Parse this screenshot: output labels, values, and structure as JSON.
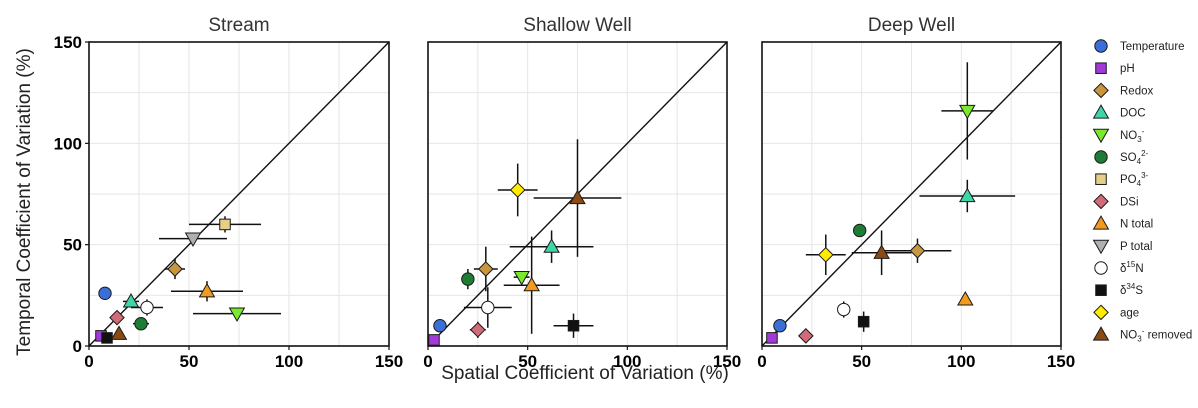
{
  "chart_data": {
    "type": "scatter",
    "xlabel": "Spatial Coefficient of Variation (%)",
    "ylabel": "Temporal Coefficient of Variation (%)",
    "xlim": [
      0,
      150
    ],
    "ylim": [
      0,
      150
    ],
    "xticks": [
      "0",
      "50",
      "100",
      "150"
    ],
    "yticks": [
      "0",
      "50",
      "100",
      "150"
    ],
    "grid": true,
    "reference_line": "1:1",
    "legend_position": "right",
    "variables": [
      {
        "key": "Temperature",
        "marker": "circle",
        "color": "#3a6fd8",
        "label_main": "Temperature",
        "label_sup": ""
      },
      {
        "key": "pH",
        "marker": "square",
        "color": "#a13ad8",
        "label_main": "pH",
        "label_sup": ""
      },
      {
        "key": "Redox",
        "marker": "diamond",
        "color": "#c8963c",
        "label_main": "Redox",
        "label_sup": ""
      },
      {
        "key": "DOC",
        "marker": "triangle-up",
        "color": "#3ed6a8",
        "label_main": "DOC",
        "label_sup": ""
      },
      {
        "key": "NO3",
        "marker": "triangle-down",
        "color": "#7ae82c",
        "label_main": "NO",
        "label_sub": "3",
        "label_sup": "-"
      },
      {
        "key": "SO4",
        "marker": "circle",
        "color": "#1e7d34",
        "label_main": "SO",
        "label_sub": "4",
        "label_sup": "2-"
      },
      {
        "key": "PO4",
        "marker": "square",
        "color": "#e6cf86",
        "label_main": "PO",
        "label_sub": "4",
        "label_sup": "3-"
      },
      {
        "key": "DSi",
        "marker": "diamond",
        "color": "#d16b7a",
        "label_main": "DSi",
        "label_sup": ""
      },
      {
        "key": "Ntotal",
        "marker": "triangle-up",
        "color": "#f39a1e",
        "label_main": "N total",
        "label_sup": ""
      },
      {
        "key": "Ptotal",
        "marker": "triangle-down",
        "color": "#b0b0b0",
        "label_main": "P total",
        "label_sup": ""
      },
      {
        "key": "d15N",
        "marker": "circle",
        "color": "#ffffff",
        "label_main": "δ",
        "label_pre_sup": "15",
        "label_after": "N",
        "label_sup": ""
      },
      {
        "key": "d34S",
        "marker": "square",
        "color": "#111111",
        "label_main": "δ",
        "label_pre_sup": "34",
        "label_after": "S",
        "label_sup": ""
      },
      {
        "key": "age",
        "marker": "diamond",
        "color": "#ffec00",
        "label_main": "age",
        "label_sup": ""
      },
      {
        "key": "NO3removed",
        "marker": "triangle-up",
        "color": "#8b4a12",
        "label_main": "NO",
        "label_sub": "3",
        "label_sup": "-",
        "label_after": " removed"
      }
    ],
    "panels": [
      {
        "title": "Stream",
        "points": [
          {
            "var": "Temperature",
            "x": 8,
            "y": 26
          },
          {
            "var": "pH",
            "x": 6,
            "y": 5
          },
          {
            "var": "Redox",
            "x": 43,
            "y": 38,
            "xerr": 5,
            "yerr": 5
          },
          {
            "var": "DOC",
            "x": 21,
            "y": 22,
            "xerr": 4,
            "yerr": 3
          },
          {
            "var": "NO3",
            "x": 74,
            "y": 16,
            "xerr": 22,
            "yerr": 3
          },
          {
            "var": "SO4",
            "x": 26,
            "y": 11,
            "xerr": 4,
            "yerr": 3
          },
          {
            "var": "PO4",
            "x": 68,
            "y": 60,
            "xerr": 18,
            "yerr": 4
          },
          {
            "var": "DSi",
            "x": 14,
            "y": 14
          },
          {
            "var": "Ntotal",
            "x": 59,
            "y": 27,
            "xerr": 18,
            "yerr": 5
          },
          {
            "var": "Ptotal",
            "x": 52,
            "y": 53,
            "xerr": 17,
            "yerr": 3
          },
          {
            "var": "d15N",
            "x": 29,
            "y": 19,
            "xerr": 8,
            "yerr": 4
          },
          {
            "var": "d34S",
            "x": 9,
            "y": 4
          },
          {
            "var": "NO3removed",
            "x": 15,
            "y": 6
          }
        ]
      },
      {
        "title": "Shallow Well",
        "points": [
          {
            "var": "Temperature",
            "x": 6,
            "y": 10
          },
          {
            "var": "pH",
            "x": 3,
            "y": 3
          },
          {
            "var": "Redox",
            "x": 29,
            "y": 38,
            "xerr": 6,
            "yerr": 11
          },
          {
            "var": "DOC",
            "x": 62,
            "y": 49,
            "xerr": 21,
            "yerr": 8
          },
          {
            "var": "NO3",
            "x": 47,
            "y": 34,
            "xerr": 4,
            "yerr": 3
          },
          {
            "var": "SO4",
            "x": 20,
            "y": 33,
            "xerr": 3,
            "yerr": 5
          },
          {
            "var": "DSi",
            "x": 25,
            "y": 8,
            "xerr": 4,
            "yerr": 4
          },
          {
            "var": "Ntotal",
            "x": 52,
            "y": 30,
            "xerr": 14,
            "yerr": 24
          },
          {
            "var": "d15N",
            "x": 30,
            "y": 19,
            "xerr": 12,
            "yerr": 10
          },
          {
            "var": "d34S",
            "x": 73,
            "y": 10,
            "xerr": 10,
            "yerr": 6
          },
          {
            "var": "age",
            "x": 45,
            "y": 77,
            "xerr": 10,
            "yerr": 13
          },
          {
            "var": "NO3removed",
            "x": 75,
            "y": 73,
            "xerr": 22,
            "yerr": 29
          }
        ]
      },
      {
        "title": "Deep Well",
        "points": [
          {
            "var": "Temperature",
            "x": 9,
            "y": 10
          },
          {
            "var": "pH",
            "x": 5,
            "y": 4
          },
          {
            "var": "Redox",
            "x": 78,
            "y": 47,
            "xerr": 17,
            "yerr": 6
          },
          {
            "var": "DOC",
            "x": 103,
            "y": 74,
            "xerr": 24,
            "yerr": 8
          },
          {
            "var": "NO3",
            "x": 103,
            "y": 116,
            "xerr": 13,
            "yerr": 24
          },
          {
            "var": "SO4",
            "x": 49,
            "y": 57,
            "yerr": 3
          },
          {
            "var": "DSi",
            "x": 22,
            "y": 5
          },
          {
            "var": "Ntotal",
            "x": 102,
            "y": 23
          },
          {
            "var": "d15N",
            "x": 41,
            "y": 18,
            "yerr": 4
          },
          {
            "var": "d34S",
            "x": 51,
            "y": 12,
            "yerr": 5
          },
          {
            "var": "age",
            "x": 32,
            "y": 45,
            "xerr": 10,
            "yerr": 10
          },
          {
            "var": "NO3removed",
            "x": 60,
            "y": 46,
            "xerr": 15,
            "yerr": 11
          }
        ]
      }
    ]
  }
}
